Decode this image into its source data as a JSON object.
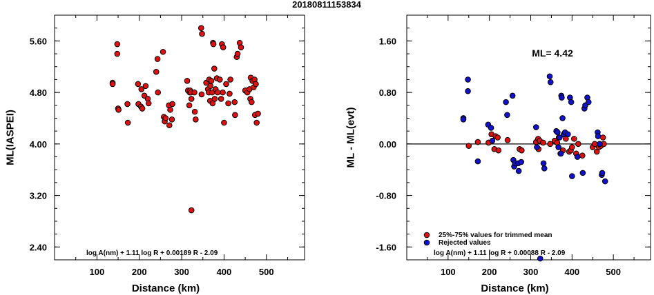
{
  "title": "20180811153834",
  "chart_data": [
    {
      "type": "scatter",
      "xlabel": "Distance (km)",
      "ylabel": "ML(IASPEI)",
      "xlim": [
        0,
        590
      ],
      "ylim": [
        2.2,
        6.0
      ],
      "x_ticks": [
        100,
        200,
        300,
        400,
        500
      ],
      "y_ticks": [
        5.6,
        4.8,
        4.0,
        3.2,
        2.4
      ],
      "y_tick_labels": [
        "5.60",
        "4.80",
        "4.00",
        "3.20",
        "2.40"
      ],
      "formula": "log A(nm) + 1.11 log R + 0.00189 R - 2.09",
      "series": [
        {
          "color": "#dd1111",
          "points": [
            [
              137,
              4.95
            ],
            [
              137,
              4.93
            ],
            [
              148,
              5.55
            ],
            [
              148,
              5.4
            ],
            [
              150,
              4.55
            ],
            [
              151,
              4.53
            ],
            [
              172,
              4.62
            ],
            [
              173,
              4.33
            ],
            [
              197,
              4.93
            ],
            [
              198,
              4.62
            ],
            [
              204,
              4.58
            ],
            [
              205,
              4.85
            ],
            [
              207,
              4.55
            ],
            [
              212,
              4.75
            ],
            [
              215,
              4.9
            ],
            [
              220,
              4.7
            ],
            [
              222,
              4.63
            ],
            [
              240,
              5.12
            ],
            [
              243,
              5.32
            ],
            [
              244,
              4.8
            ],
            [
              256,
              5.43
            ],
            [
              258,
              4.42
            ],
            [
              260,
              4.35
            ],
            [
              262,
              4.4
            ],
            [
              270,
              4.6
            ],
            [
              271,
              4.29
            ],
            [
              273,
              4.53
            ],
            [
              277,
              4.38
            ],
            [
              278,
              4.62
            ],
            [
              313,
              4.98
            ],
            [
              315,
              4.83
            ],
            [
              318,
              4.6
            ],
            [
              319,
              4.8
            ],
            [
              320,
              4.83
            ],
            [
              322,
              4.8
            ],
            [
              323,
              4.7
            ],
            [
              323,
              2.97
            ],
            [
              330,
              4.8
            ],
            [
              331,
              4.5
            ],
            [
              333,
              4.38
            ],
            [
              346,
              5.8
            ],
            [
              347,
              4.77
            ],
            [
              348,
              5.71
            ],
            [
              358,
              4.95
            ],
            [
              362,
              4.85
            ],
            [
              364,
              4.8
            ],
            [
              365,
              5.0
            ],
            [
              367,
              4.67
            ],
            [
              368,
              4.9
            ],
            [
              370,
              4.98
            ],
            [
              372,
              4.8
            ],
            [
              373,
              4.63
            ],
            [
              374,
              5.57
            ],
            [
              375,
              5.55
            ],
            [
              377,
              5.17
            ],
            [
              378,
              4.7
            ],
            [
              380,
              4.85
            ],
            [
              383,
              5.02
            ],
            [
              385,
              4.8
            ],
            [
              390,
              5.0
            ],
            [
              393,
              4.7
            ],
            [
              395,
              5.55
            ],
            [
              397,
              4.8
            ],
            [
              398,
              5.5
            ],
            [
              400,
              4.33
            ],
            [
              405,
              4.93
            ],
            [
              410,
              4.63
            ],
            [
              413,
              4.78
            ],
            [
              415,
              5.0
            ],
            [
              425,
              4.65
            ],
            [
              426,
              4.45
            ],
            [
              430,
              5.35
            ],
            [
              432,
              5.4
            ],
            [
              437,
              5.57
            ],
            [
              440,
              5.5
            ],
            [
              450,
              4.83
            ],
            [
              455,
              4.8
            ],
            [
              460,
              4.85
            ],
            [
              462,
              4.7
            ],
            [
              463,
              5.03
            ],
            [
              465,
              4.65
            ],
            [
              467,
              4.98
            ],
            [
              470,
              4.88
            ],
            [
              472,
              5.0
            ],
            [
              473,
              4.45
            ],
            [
              475,
              4.93
            ],
            [
              477,
              4.33
            ],
            [
              480,
              4.47
            ]
          ]
        }
      ]
    },
    {
      "type": "scatter",
      "xlabel": "Distance (km)",
      "ylabel": "ML - ML(evt)",
      "xlim": [
        0,
        590
      ],
      "ylim": [
        -1.8,
        2.0
      ],
      "x_ticks": [
        100,
        200,
        300,
        400,
        500
      ],
      "y_ticks": [
        1.6,
        0.8,
        0.0,
        -0.8,
        -1.6
      ],
      "y_tick_labels": [
        "1.60",
        "0.80",
        "0.00",
        "-0.80",
        "-1.60"
      ],
      "annotation": "ML= 4.42",
      "formula": "log A(nm) + 1.11 log R + 0.00088 R - 2.09",
      "series": [
        {
          "name": "25%-75% values for trimmed mean",
          "color": "#dd1111",
          "points": [
            [
              150,
              -0.03
            ],
            [
              172,
              0.03
            ],
            [
              198,
              0.02
            ],
            [
              205,
              0.15
            ],
            [
              212,
              -0.08
            ],
            [
              215,
              0.12
            ],
            [
              220,
              0.1
            ],
            [
              222,
              -0.1
            ],
            [
              244,
              0.06
            ],
            [
              273,
              -0.08
            ],
            [
              278,
              -0.1
            ],
            [
              313,
              0.03
            ],
            [
              318,
              0.08
            ],
            [
              319,
              -0.08
            ],
            [
              322,
              0.05
            ],
            [
              330,
              0.02
            ],
            [
              347,
              0.0
            ],
            [
              358,
              0.05
            ],
            [
              364,
              0.02
            ],
            [
              368,
              0.1
            ],
            [
              372,
              -0.15
            ],
            [
              378,
              -0.1
            ],
            [
              385,
              0.08
            ],
            [
              393,
              -0.12
            ],
            [
              397,
              -0.1
            ],
            [
              400,
              -0.05
            ],
            [
              405,
              0.08
            ],
            [
              410,
              -0.15
            ],
            [
              415,
              0.0
            ],
            [
              425,
              -0.18
            ],
            [
              450,
              -0.05
            ],
            [
              455,
              0.0
            ],
            [
              460,
              -0.12
            ],
            [
              465,
              -0.05
            ],
            [
              470,
              -0.03
            ],
            [
              475,
              0.1
            ],
            [
              477,
              0.0
            ]
          ]
        },
        {
          "name": "Rejected values",
          "color": "#1111cc",
          "points": [
            [
              137,
              0.4
            ],
            [
              137,
              0.38
            ],
            [
              148,
              1.0
            ],
            [
              148,
              0.82
            ],
            [
              172,
              -0.27
            ],
            [
              197,
              0.3
            ],
            [
              204,
              0.25
            ],
            [
              207,
              0.05
            ],
            [
              240,
              0.65
            ],
            [
              243,
              0.45
            ],
            [
              256,
              0.75
            ],
            [
              258,
              -0.25
            ],
            [
              260,
              -0.35
            ],
            [
              262,
              -0.3
            ],
            [
              270,
              -0.3
            ],
            [
              271,
              -0.42
            ],
            [
              277,
              -0.28
            ],
            [
              313,
              0.26
            ],
            [
              315,
              -0.05
            ],
            [
              323,
              -1.78
            ],
            [
              331,
              -0.3
            ],
            [
              333,
              -0.38
            ],
            [
              346,
              1.05
            ],
            [
              348,
              0.96
            ],
            [
              362,
              0.2
            ],
            [
              365,
              0.18
            ],
            [
              367,
              -0.05
            ],
            [
              370,
              0.1
            ],
            [
              373,
              -0.15
            ],
            [
              374,
              0.75
            ],
            [
              375,
              0.72
            ],
            [
              377,
              0.4
            ],
            [
              380,
              0.15
            ],
            [
              383,
              0.18
            ],
            [
              390,
              0.15
            ],
            [
              395,
              0.72
            ],
            [
              398,
              0.65
            ],
            [
              400,
              -0.5
            ],
            [
              413,
              -0.2
            ],
            [
              426,
              -0.45
            ],
            [
              430,
              0.55
            ],
            [
              432,
              0.6
            ],
            [
              437,
              0.72
            ],
            [
              440,
              0.65
            ],
            [
              462,
              0.18
            ],
            [
              463,
              0.12
            ],
            [
              467,
              0.0
            ],
            [
              472,
              -0.48
            ],
            [
              473,
              -0.45
            ],
            [
              480,
              -0.58
            ]
          ]
        }
      ]
    }
  ]
}
